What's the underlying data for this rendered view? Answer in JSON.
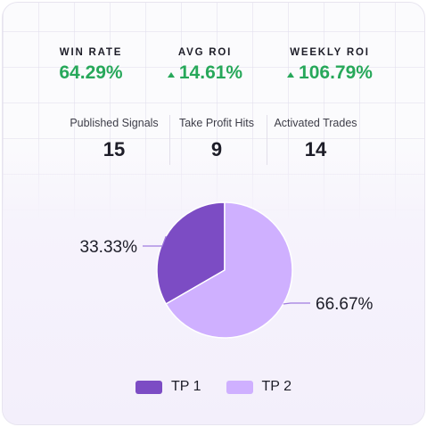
{
  "metrics": [
    {
      "label": "WIN RATE",
      "value": "64.29%",
      "trend": ""
    },
    {
      "label": "AVG ROI",
      "value": "14.61%",
      "trend": "up"
    },
    {
      "label": "WEEKLY ROI",
      "value": "106.79%",
      "trend": "up"
    }
  ],
  "stats": [
    {
      "label": "Published Signals",
      "value": "15"
    },
    {
      "label": "Take Profit Hits",
      "value": "9"
    },
    {
      "label": "Activated Trades",
      "value": "14"
    }
  ],
  "colors": {
    "positive": "#27a85a",
    "tp1": "#7c4cc4",
    "tp2": "#cfb0ff"
  },
  "chart_data": {
    "type": "pie",
    "categories": [
      "TP 1",
      "TP 2"
    ],
    "values": [
      33.33,
      66.67
    ],
    "labels": [
      "33.33%",
      "66.67%"
    ],
    "colors": [
      "#7c4cc4",
      "#cfb0ff"
    ],
    "legend_position": "bottom"
  }
}
